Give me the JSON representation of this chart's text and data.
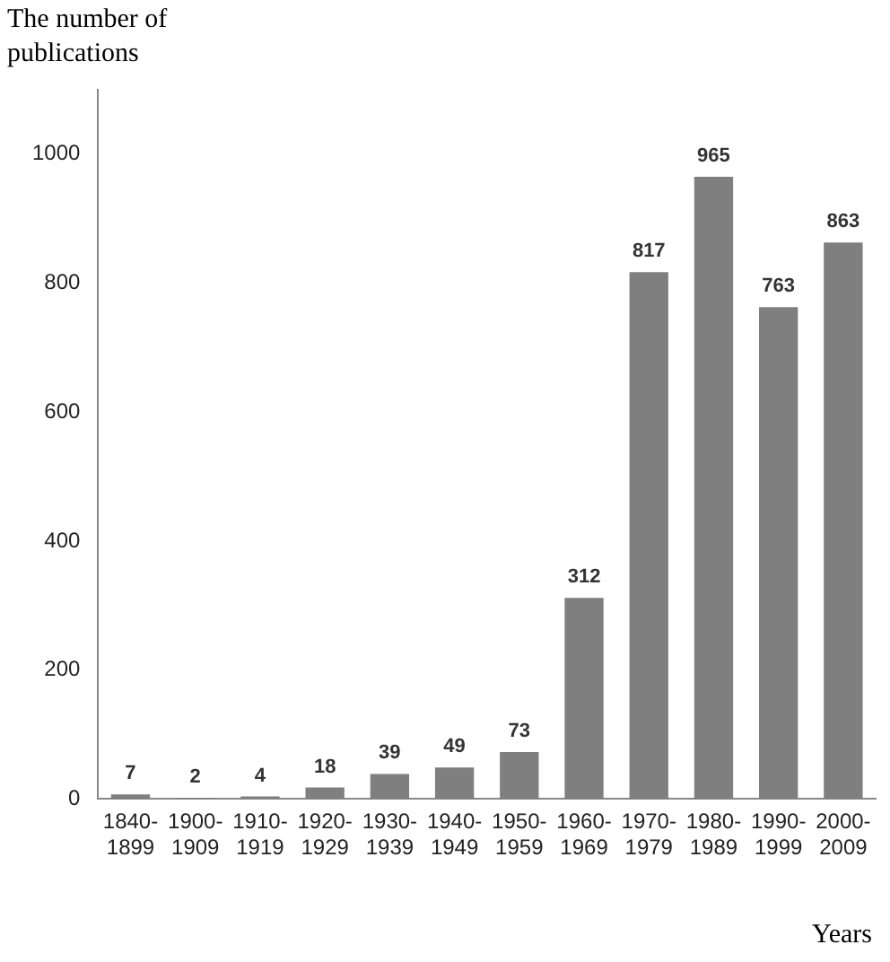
{
  "chart_data": {
    "type": "bar",
    "ylabel": "The number of publications",
    "xlabel": "Years",
    "categories": [
      "1840-1899",
      "1900-1909",
      "1910-1919",
      "1920-1929",
      "1930-1939",
      "1940-1949",
      "1950-1959",
      "1960-1969",
      "1970-1979",
      "1980-1989",
      "1990-1999",
      "2000-2009"
    ],
    "values": [
      7,
      2,
      4,
      18,
      39,
      49,
      73,
      312,
      817,
      965,
      763,
      863
    ],
    "color": "#7f7f7f",
    "ylim": [
      0,
      1100
    ],
    "yticks": [
      0,
      200,
      400,
      600,
      800,
      1000
    ],
    "grid": false,
    "data_labels": true
  }
}
